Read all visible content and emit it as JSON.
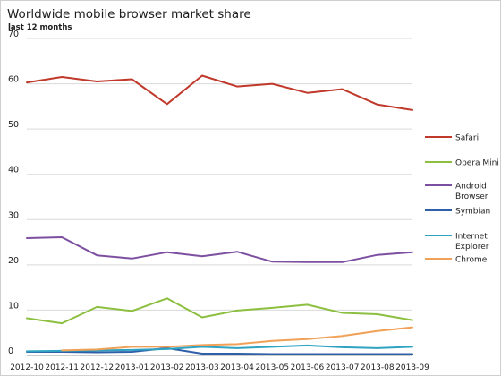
{
  "chart_data": {
    "type": "line",
    "title": "Worldwide mobile browser market share",
    "subtitle": "last 12 months",
    "xlabel": "",
    "ylabel": "",
    "ylim": [
      0,
      70
    ],
    "yticks": [
      0,
      10,
      20,
      30,
      40,
      50,
      60,
      70
    ],
    "grid": true,
    "legend_position": "right",
    "x": [
      "2012-10",
      "2012-11",
      "2012-12",
      "2013-01",
      "2013-02",
      "2013-03",
      "2013-04",
      "2013-05",
      "2013-06",
      "2013-07",
      "2013-08",
      "2013-09"
    ],
    "series": [
      {
        "name": "Safari",
        "color": "#c0392b",
        "values": [
          60.3,
          61.5,
          60.5,
          61.0,
          55.5,
          61.8,
          59.4,
          60.0,
          58.0,
          58.8,
          55.4,
          54.2
        ]
      },
      {
        "name": "Opera Mini",
        "color": "#8cbf3f",
        "values": [
          8.2,
          7.1,
          10.7,
          9.8,
          12.6,
          8.4,
          9.9,
          10.5,
          11.2,
          9.4,
          9.1,
          7.8
        ]
      },
      {
        "name": "Android Browser",
        "color": "#7d4fa0",
        "values": [
          25.9,
          26.1,
          22.1,
          21.4,
          22.8,
          21.9,
          22.9,
          20.7,
          20.6,
          20.6,
          22.2,
          22.8
        ]
      },
      {
        "name": "Symbian",
        "color": "#2f5fa8",
        "values": [
          0.8,
          0.8,
          0.7,
          0.8,
          1.6,
          0.4,
          0.4,
          0.3,
          0.3,
          0.3,
          0.3,
          0.3
        ]
      },
      {
        "name": "Internet Explorer",
        "color": "#2ea3c2",
        "values": [
          0.9,
          1.0,
          1.1,
          1.2,
          1.4,
          1.9,
          1.6,
          1.9,
          2.2,
          1.8,
          1.6,
          1.9
        ]
      },
      {
        "name": "Chrome",
        "color": "#f0a057",
        "values": [
          null,
          1.1,
          1.3,
          1.9,
          1.9,
          2.3,
          2.5,
          3.2,
          3.6,
          4.3,
          5.4,
          6.2
        ]
      }
    ],
    "legend": [
      {
        "series": 0,
        "lines": [
          "Safari"
        ]
      },
      {
        "series": 1,
        "lines": [
          "Opera Mini"
        ]
      },
      {
        "series": 2,
        "lines": [
          "Android",
          "Browser"
        ]
      },
      {
        "series": 3,
        "lines": [
          "Symbian"
        ]
      },
      {
        "series": 4,
        "lines": [
          "Internet",
          "Explorer"
        ]
      },
      {
        "series": 5,
        "lines": [
          "Chrome"
        ]
      }
    ]
  },
  "colors": {
    "grid": "#d9d9d9",
    "axis": "#9a9a9a",
    "text": "#222222"
  }
}
